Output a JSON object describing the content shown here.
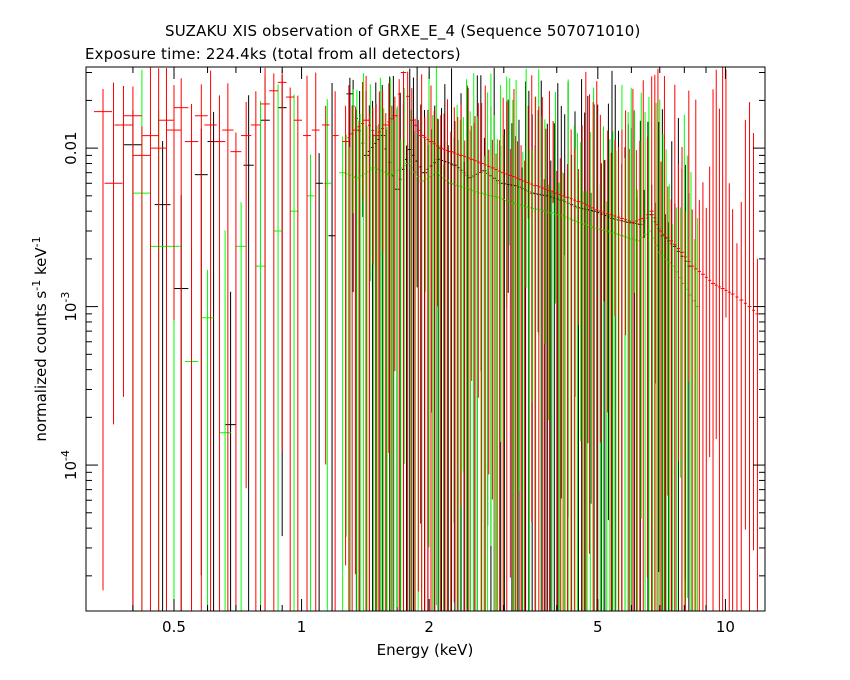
{
  "title": "SUZAKU XIS observation of GRXE_E_4 (Sequence 507071010)",
  "subtitle": "Exposure time: 224.4ks (total from all detectors)",
  "chart_data": {
    "type": "scatter",
    "title": "SUZAKU XIS observation of GRXE_E_4 (Sequence 507071010)",
    "subtitle": "Exposure time: 224.4ks (total from all detectors)",
    "xlabel": "Energy (keV)",
    "ylabel": {
      "main": "normalized counts s",
      "sup1": "-1",
      "mid": " keV",
      "sup2": "-1"
    },
    "x_scale": "log",
    "y_scale": "log",
    "xlim": [
      0.31,
      12.4
    ],
    "ylim": [
      1.2e-05,
      0.0325
    ],
    "x_ticks": [
      {
        "value": 0.5,
        "label": "0.5"
      },
      {
        "value": 1,
        "label": "1"
      },
      {
        "value": 2,
        "label": "2"
      },
      {
        "value": 5,
        "label": "5"
      },
      {
        "value": 10,
        "label": "10"
      }
    ],
    "y_ticks": [
      {
        "value": 0.0001,
        "base": "10",
        "exp": "-4"
      },
      {
        "value": 0.001,
        "base": "10",
        "exp": "-3"
      },
      {
        "value": 0.01,
        "label": "0.01"
      }
    ],
    "grid": false,
    "series": [
      {
        "color": "#000000",
        "points": [
          [
            0.4,
            0.0105
          ],
          [
            0.47,
            0.0044
          ],
          [
            0.52,
            0.0013
          ],
          [
            0.58,
            0.0068
          ],
          [
            0.62,
            0.011
          ],
          [
            0.68,
            0.00018
          ],
          [
            0.75,
            0.0078
          ],
          [
            0.82,
            0.015
          ],
          [
            0.9,
            0.018
          ],
          [
            1.1,
            0.006
          ],
          [
            1.18,
            0.0028
          ],
          [
            1.3,
            0.022
          ],
          [
            1.42,
            0.009
          ],
          [
            1.55,
            0.012
          ],
          [
            1.68,
            0.0055
          ],
          [
            1.8,
            0.0098
          ],
          [
            1.95,
            0.007
          ],
          [
            2.1,
            0.0085
          ],
          [
            2.3,
            0.0078
          ],
          [
            2.5,
            0.0065
          ],
          [
            2.7,
            0.0072
          ],
          [
            2.95,
            0.006
          ],
          [
            3.2,
            0.0058
          ],
          [
            3.5,
            0.0052
          ],
          [
            3.8,
            0.005
          ],
          [
            4.1,
            0.0047
          ],
          [
            4.5,
            0.0042
          ],
          [
            4.9,
            0.004
          ],
          [
            5.4,
            0.0036
          ],
          [
            5.9,
            0.0034
          ],
          [
            6.3,
            0.0033
          ],
          [
            6.7,
            0.0038
          ],
          [
            7.1,
            0.0028
          ],
          [
            7.6,
            0.0024
          ],
          [
            8.2,
            0.0018
          ]
        ]
      },
      {
        "color": "#00ff00",
        "points": [
          [
            0.42,
            0.0052
          ],
          [
            0.46,
            0.0024
          ],
          [
            0.5,
            0.0024
          ],
          [
            0.55,
            0.00045
          ],
          [
            0.6,
            0.00085
          ],
          [
            0.66,
            0.00016
          ],
          [
            0.72,
            0.0024
          ],
          [
            0.8,
            0.0018
          ],
          [
            0.88,
            0.003
          ],
          [
            0.96,
            0.004
          ],
          [
            1.05,
            0.005
          ],
          [
            1.15,
            0.006
          ],
          [
            1.25,
            0.007
          ],
          [
            1.35,
            0.0065
          ],
          [
            1.48,
            0.0075
          ],
          [
            1.62,
            0.0068
          ],
          [
            1.78,
            0.008
          ],
          [
            1.92,
            0.0062
          ],
          [
            2.08,
            0.007
          ],
          [
            2.25,
            0.006
          ],
          [
            2.45,
            0.0056
          ],
          [
            2.65,
            0.0052
          ],
          [
            2.9,
            0.0049
          ],
          [
            3.15,
            0.0045
          ],
          [
            3.45,
            0.0042
          ],
          [
            3.75,
            0.004
          ],
          [
            4.05,
            0.0038
          ],
          [
            4.4,
            0.0035
          ],
          [
            4.8,
            0.0032
          ],
          [
            5.25,
            0.003
          ],
          [
            5.7,
            0.0028
          ],
          [
            6.2,
            0.0026
          ],
          [
            6.6,
            0.003
          ],
          [
            7.0,
            0.0022
          ],
          [
            7.5,
            0.0018
          ],
          [
            8.0,
            0.0014
          ],
          [
            8.6,
            0.001
          ]
        ]
      },
      {
        "color": "#ff0000",
        "points": [
          [
            0.34,
            0.017
          ],
          [
            0.36,
            0.006
          ],
          [
            0.38,
            0.014
          ],
          [
            0.4,
            0.016
          ],
          [
            0.42,
            0.009
          ],
          [
            0.44,
            0.012
          ],
          [
            0.46,
            0.01
          ],
          [
            0.48,
            0.015
          ],
          [
            0.5,
            0.013
          ],
          [
            0.52,
            0.018
          ],
          [
            0.55,
            0.011
          ],
          [
            0.58,
            0.016
          ],
          [
            0.61,
            0.014
          ],
          [
            0.64,
            0.011
          ],
          [
            0.67,
            0.013
          ],
          [
            0.7,
            0.0095
          ],
          [
            0.74,
            0.012
          ],
          [
            0.78,
            0.014
          ],
          [
            0.82,
            0.019
          ],
          [
            0.86,
            0.023
          ],
          [
            0.9,
            0.026
          ],
          [
            0.94,
            0.021
          ],
          [
            0.98,
            0.015
          ],
          [
            1.03,
            0.012
          ],
          [
            1.08,
            0.013
          ],
          [
            1.14,
            0.014
          ],
          [
            1.2,
            0.012
          ],
          [
            1.27,
            0.011
          ],
          [
            1.34,
            0.013
          ],
          [
            1.42,
            0.015
          ],
          [
            1.5,
            0.012
          ],
          [
            1.58,
            0.014
          ],
          [
            1.66,
            0.016
          ],
          [
            1.74,
            0.03
          ],
          [
            1.82,
            0.015
          ],
          [
            1.92,
            0.012
          ],
          [
            2.02,
            0.011
          ],
          [
            2.13,
            0.01
          ],
          [
            2.25,
            0.0095
          ],
          [
            2.38,
            0.009
          ],
          [
            2.52,
            0.0085
          ],
          [
            2.66,
            0.008
          ],
          [
            2.82,
            0.0075
          ],
          [
            2.99,
            0.007
          ],
          [
            3.17,
            0.0066
          ],
          [
            3.36,
            0.0062
          ],
          [
            3.56,
            0.0058
          ],
          [
            3.77,
            0.0055
          ],
          [
            4.0,
            0.0052
          ],
          [
            4.24,
            0.0049
          ],
          [
            4.5,
            0.0046
          ],
          [
            4.78,
            0.0043
          ],
          [
            5.07,
            0.004
          ],
          [
            5.38,
            0.0038
          ],
          [
            5.7,
            0.0036
          ],
          [
            6.05,
            0.0034
          ],
          [
            6.4,
            0.0036
          ],
          [
            6.7,
            0.004
          ],
          [
            7.05,
            0.003
          ],
          [
            7.45,
            0.0026
          ],
          [
            7.9,
            0.0022
          ],
          [
            8.35,
            0.0018
          ],
          [
            8.85,
            0.0016
          ],
          [
            9.35,
            0.0014
          ],
          [
            9.85,
            0.0013
          ],
          [
            10.4,
            0.0012
          ],
          [
            10.9,
            0.0011
          ],
          [
            11.4,
            0.001
          ],
          [
            11.9,
            0.0009
          ]
        ]
      }
    ]
  }
}
